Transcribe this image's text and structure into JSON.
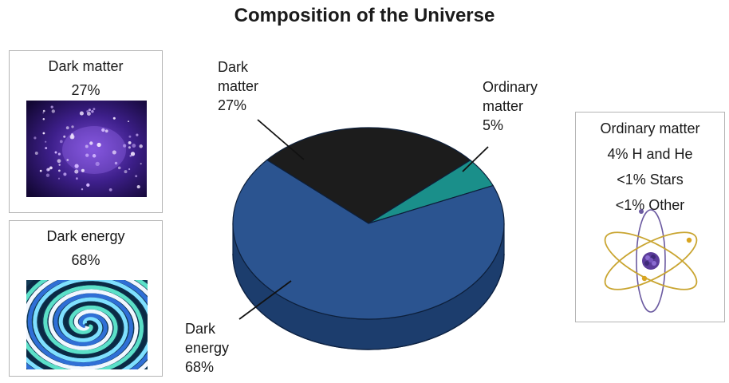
{
  "title": "Composition of the Universe",
  "chart_data": {
    "type": "pie",
    "title": "Composition of the Universe",
    "slices": [
      {
        "label_lines": [
          "Dark",
          "energy",
          "68%"
        ],
        "value": 68,
        "color": "#2b5490",
        "side_color": "#1c3d6d"
      },
      {
        "label_lines": [
          "Dark",
          "matter",
          "27%"
        ],
        "value": 27,
        "color": "#1c1c1c",
        "side_color": "#0f0f0f"
      },
      {
        "label_lines": [
          "Ordinary",
          "matter",
          "5%"
        ],
        "value": 5,
        "color": "#1a8f8a",
        "side_color": "#12615d"
      }
    ]
  },
  "panels": {
    "dark_matter": {
      "name": "Dark matter",
      "percent": "27%"
    },
    "dark_energy": {
      "name": "Dark energy",
      "percent": "68%"
    },
    "ordinary_matter": {
      "name": "Ordinary matter",
      "lines": [
        "4% H and He",
        "<1% Stars",
        "<1% Other"
      ]
    }
  }
}
